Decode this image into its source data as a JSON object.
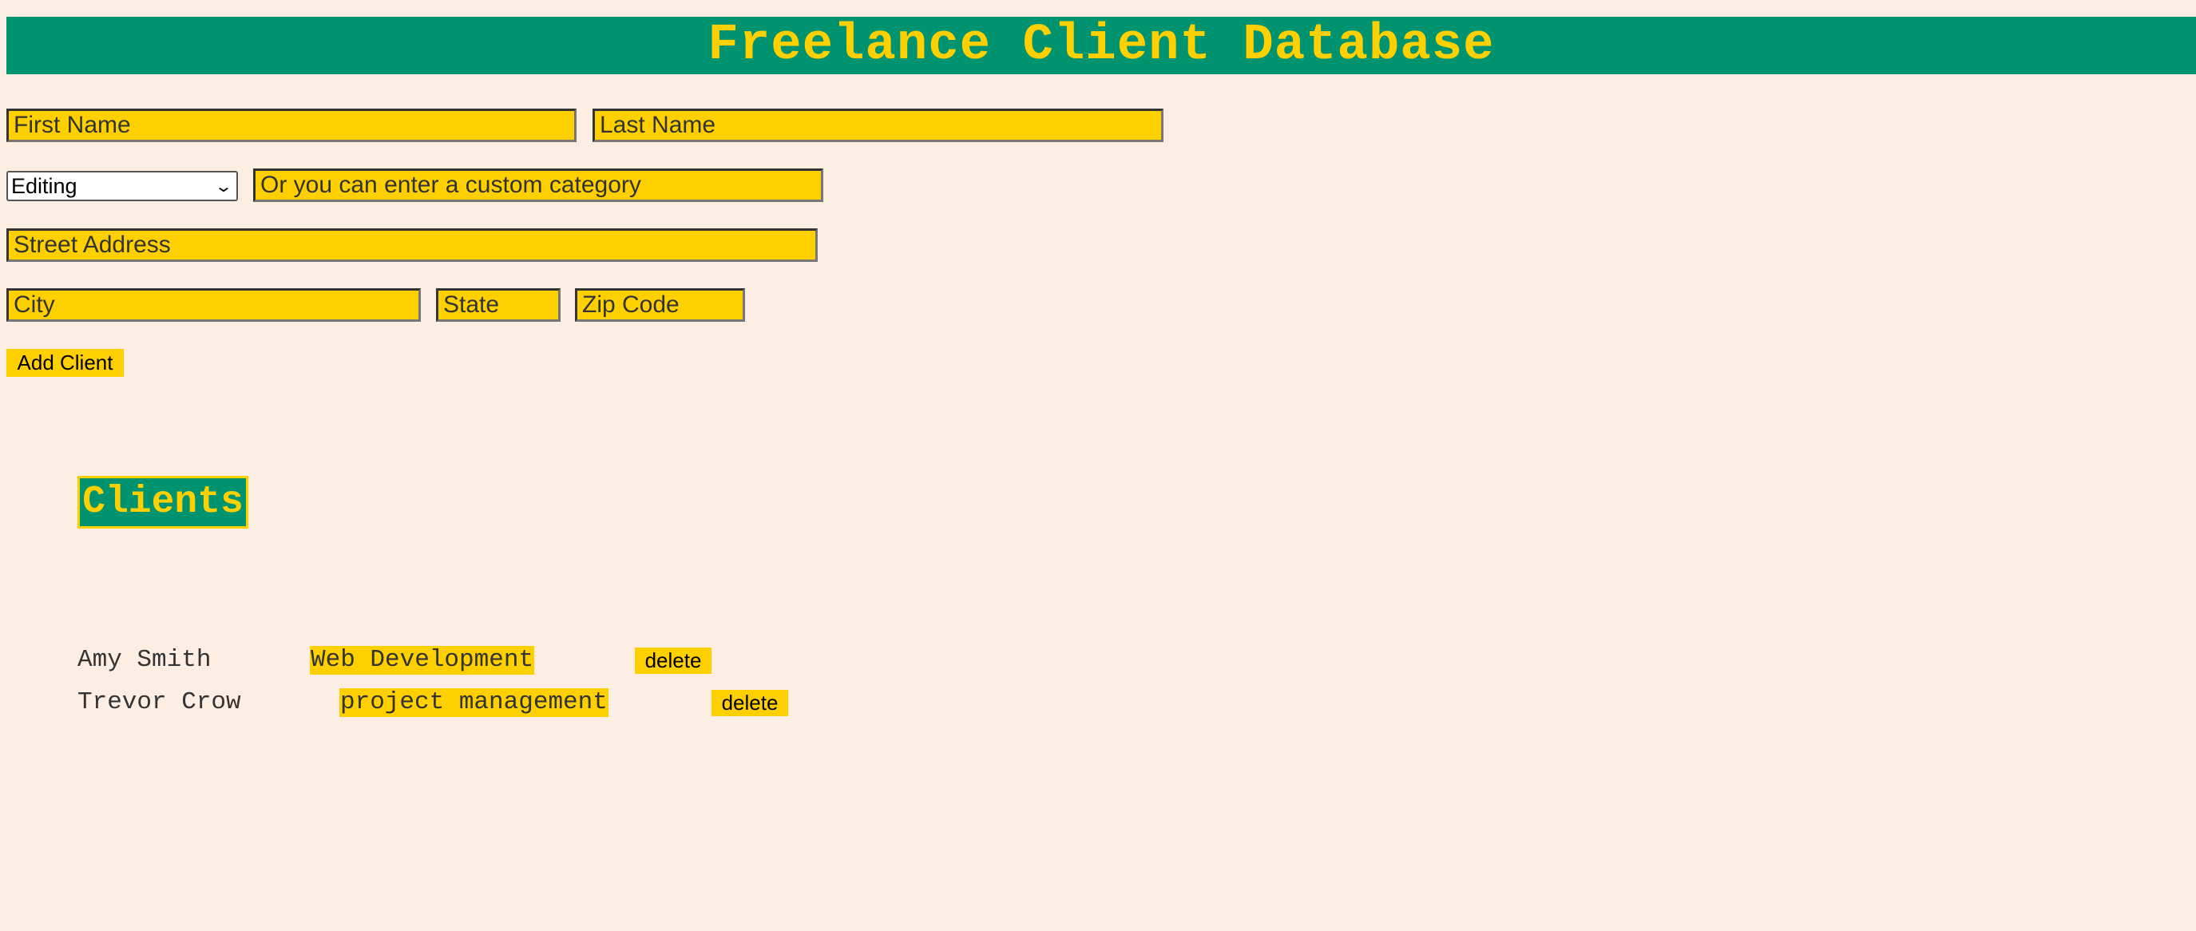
{
  "app": {
    "title": "Freelance Client Database"
  },
  "form": {
    "first_name_placeholder": "First Name",
    "last_name_placeholder": "Last Name",
    "category_selected": "Editing",
    "custom_category_placeholder": "Or you can enter a custom category",
    "street_placeholder": "Street Address",
    "city_placeholder": "City",
    "state_placeholder": "State",
    "zip_placeholder": "Zip Code",
    "add_button_label": "Add Client"
  },
  "clients_section": {
    "title": "Clients",
    "delete_label": "delete",
    "items": [
      {
        "name": "Amy Smith",
        "category": "Web Development"
      },
      {
        "name": "Trevor Crow",
        "category": "project management"
      }
    ]
  },
  "colors": {
    "background": "#fdeee4",
    "accent_green": "#009370",
    "accent_yellow": "#ffd000"
  }
}
